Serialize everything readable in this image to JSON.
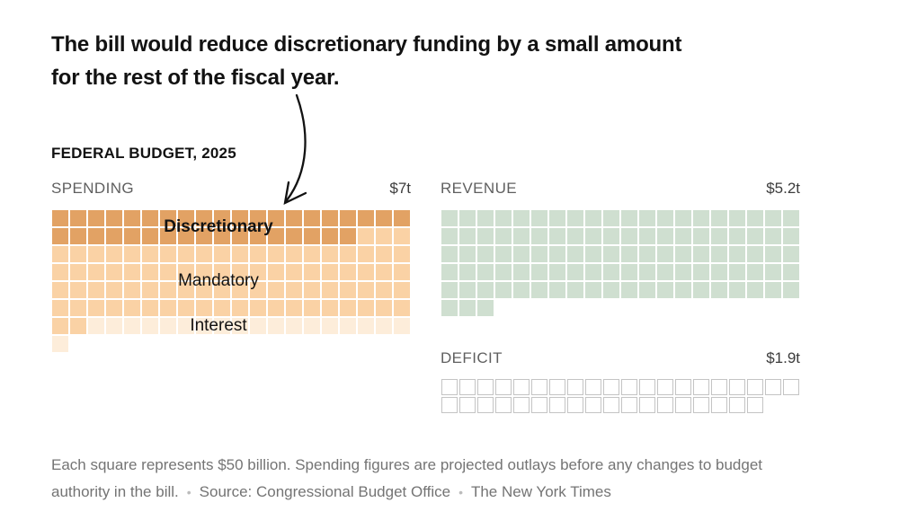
{
  "title": {
    "line1": "The bill would reduce discretionary funding by a small amount",
    "line2": "for the rest of the fiscal year."
  },
  "kicker": "FEDERAL BUDGET, 2025",
  "colors": {
    "discretionary": "#e2a264",
    "mandatory": "#fad2a5",
    "interest": "#fdedda",
    "revenue": "#cfdfd0",
    "deficit_border": "#c4c4c4",
    "background": "#ffffff"
  },
  "charts": {
    "spending": {
      "label": "SPENDING",
      "total": "$7t",
      "annotations": {
        "discretionary": "Discretionary",
        "mandatory": "Mandatory",
        "interest": "Interest"
      },
      "rows": [
        "DDDDDDDDDDDDDDDDDDDD",
        "DDDDDDDDDDDDDDDDDMMM",
        "MMMMMMMMMMMMMMMMMMMM",
        "MMMMMMMMMMMMMMMMMMMM",
        "MMMMMMMMMMMMMMMMMMMM",
        "MMMMMMMMMMMMMMMMMMMM",
        "MMIIIIIIIIIIIIIIIIII",
        "I..................."
      ]
    },
    "revenue": {
      "label": "REVENUE",
      "total": "$5.2t",
      "rows": [
        "RRRRRRRRRRRRRRRRRRRR",
        "RRRRRRRRRRRRRRRRRRRR",
        "RRRRRRRRRRRRRRRRRRRR",
        "RRRRRRRRRRRRRRRRRRRR",
        "RRRRRRRRRRRRRRRRRRRR",
        "RRR................."
      ]
    },
    "deficit": {
      "label": "DEFICIT",
      "total": "$1.9t",
      "rows": [
        "FFFFFFFFFFFFFFFFFFFF",
        "FFFFFFFFFFFFFFFFFF.."
      ]
    }
  },
  "chart_data": {
    "type": "waffle",
    "title": "FEDERAL BUDGET, 2025",
    "square_value_billions": 50,
    "columns_per_row": 20,
    "sections": [
      {
        "name": "Spending",
        "total_label": "$7t",
        "segments": [
          {
            "name": "Discretionary",
            "squares": 37,
            "approx_trillions": 1.85
          },
          {
            "name": "Mandatory",
            "squares": 85,
            "approx_trillions": 4.25
          },
          {
            "name": "Interest",
            "squares": 19,
            "approx_trillions": 0.95
          }
        ]
      },
      {
        "name": "Revenue",
        "total_label": "$5.2t",
        "squares": 103,
        "approx_trillions": 5.15
      },
      {
        "name": "Deficit",
        "total_label": "$1.9t",
        "squares": 38,
        "approx_trillions": 1.9
      }
    ]
  },
  "footer": {
    "line1": "Each square represents $50 billion. Spending figures are projected outlays before any changes to budget",
    "line2_part1": "authority in the bill.",
    "bullet": "•",
    "line2_part2": "Source: Congressional Budget Office",
    "line2_part3": "The New York Times"
  }
}
